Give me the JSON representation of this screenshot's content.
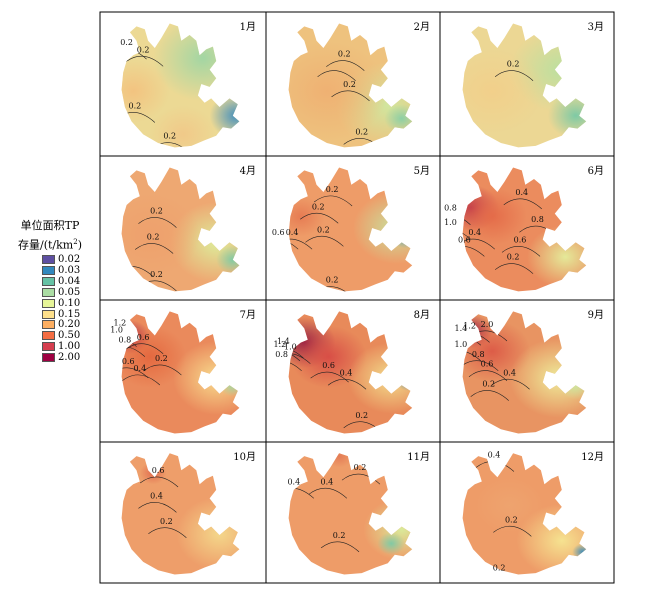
{
  "legend": {
    "title_line1": "单位面积TP",
    "title_line2_prefix": "存量/(t/km",
    "title_line2_sup": "2",
    "title_line2_suffix": ")",
    "items": [
      {
        "label": "0.02",
        "color": "#5e4fa2"
      },
      {
        "label": "0.03",
        "color": "#3288bd"
      },
      {
        "label": "0.04",
        "color": "#66c2a5"
      },
      {
        "label": "0.05",
        "color": "#abdda4"
      },
      {
        "label": "0.10",
        "color": "#e6f598"
      },
      {
        "label": "0.15",
        "color": "#fee08b"
      },
      {
        "label": "0.20",
        "color": "#fdae61"
      },
      {
        "label": "0.50",
        "color": "#f46d43"
      },
      {
        "label": "1.00",
        "color": "#d53e4f"
      },
      {
        "label": "2.00",
        "color": "#9e0142"
      }
    ]
  },
  "panels": [
    {
      "month": "1月",
      "base": "#ecd994",
      "contours": [
        "0.2",
        "0.2",
        "0.2",
        "0.2"
      ]
    },
    {
      "month": "2月",
      "base": "#eec27e",
      "contours": [
        "0.2",
        "0.2",
        "0.2"
      ]
    },
    {
      "month": "3月",
      "base": "#ecd794",
      "contours": [
        "0.2"
      ]
    },
    {
      "month": "4月",
      "base": "#eea872",
      "contours": [
        "0.2",
        "0.2",
        "0.2"
      ]
    },
    {
      "month": "5月",
      "base": "#ee9c68",
      "contours": [
        "0.6",
        "0.4",
        "0.2",
        "0.2",
        "0.2",
        "0.2"
      ]
    },
    {
      "month": "6月",
      "base": "#eb8c5e",
      "contours": [
        "0.8",
        "1.0",
        "0.6",
        "0.4",
        "0.4",
        "0.6",
        "0.2",
        "0.8"
      ]
    },
    {
      "month": "7月",
      "base": "#ea8a5c",
      "contours": [
        "1.0",
        "0.8",
        "0.6",
        "0.6",
        "0.4",
        "0.2",
        "1.2"
      ]
    },
    {
      "month": "8月",
      "base": "#e88a5a",
      "contours": [
        "1.4",
        "1.0",
        "1.2",
        "0.8",
        "0.6",
        "0.4",
        "0.2"
      ]
    },
    {
      "month": "9月",
      "base": "#e89462",
      "contours": [
        "1.4",
        "1.2",
        "2.0",
        "1.0",
        "0.8",
        "0.6",
        "0.4",
        "0.2"
      ]
    },
    {
      "month": "10月",
      "base": "#ee9e6a",
      "contours": [
        "0.6",
        "0.4",
        "0.2"
      ]
    },
    {
      "month": "11月",
      "base": "#ee9c68",
      "contours": [
        "0.2",
        "0.4",
        "0.4",
        "0.2"
      ]
    },
    {
      "month": "12月",
      "base": "#ee9c68",
      "contours": [
        "0.4",
        "0.2",
        "0.2"
      ]
    }
  ]
}
